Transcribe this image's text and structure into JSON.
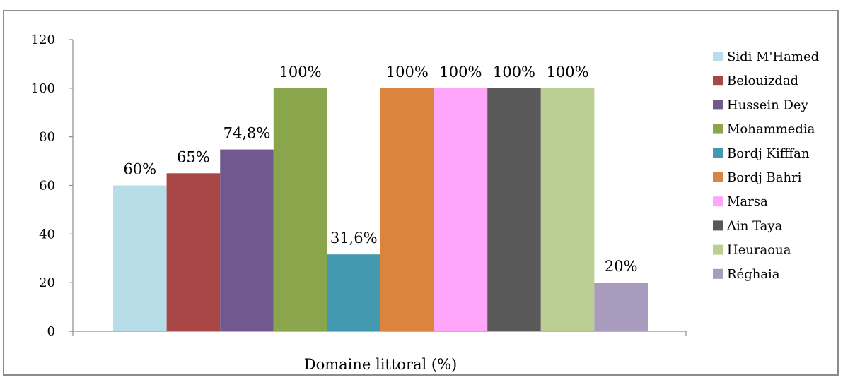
{
  "chart_data": {
    "type": "bar",
    "categories": [
      "Domaine littoral (%)"
    ],
    "xlabel": "Domaine littoral (%)",
    "ylim": [
      0,
      120
    ],
    "yticks": [
      "0",
      "20",
      "40",
      "60",
      "80",
      "100",
      "120"
    ],
    "grid": false,
    "legend_position": "right",
    "series": [
      {
        "name": "Sidi M'Hamed",
        "value": 60,
        "label": "60%",
        "color": "#b7dde8"
      },
      {
        "name": "Belouizdad",
        "value": 65,
        "label": "65%",
        "color": "#a94646"
      },
      {
        "name": "Hussein Dey",
        "value": 74.8,
        "label": "74,8%",
        "color": "#71588f"
      },
      {
        "name": "Mohammedia",
        "value": 100,
        "label": "100%",
        "color": "#8aa64c"
      },
      {
        "name": "Bordj Kifffan",
        "value": 31.6,
        "label": "31,6%",
        "color": "#4198af"
      },
      {
        "name": "Bordj Bahri",
        "value": 100,
        "label": "100%",
        "color": "#db843d"
      },
      {
        "name": "Marsa",
        "value": 100,
        "label": "100%",
        "color": "#ffa6fb"
      },
      {
        "name": "Ain Taya",
        "value": 100,
        "label": "100%",
        "color": "#595959"
      },
      {
        "name": "Heuraoua",
        "value": 100,
        "label": "100%",
        "color": "#bbcf94"
      },
      {
        "name": "Réghaia",
        "value": 20,
        "label": "20%",
        "color": "#a99bbd"
      }
    ]
  }
}
